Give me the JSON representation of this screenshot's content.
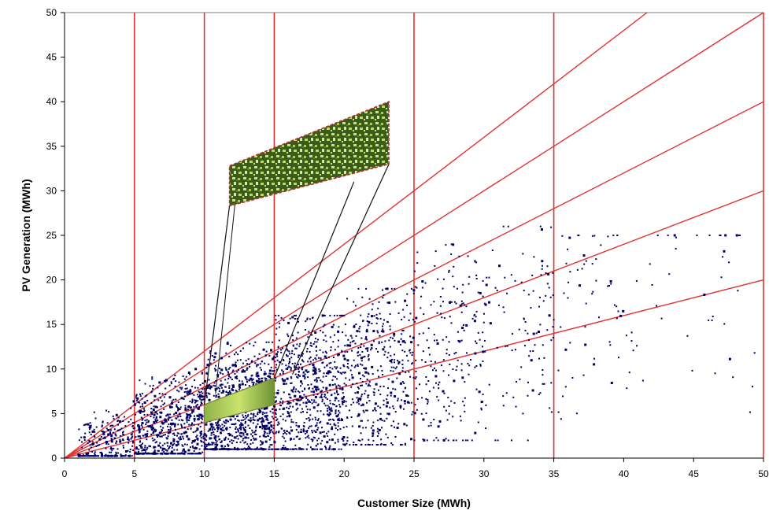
{
  "chart_data": {
    "type": "scatter",
    "title": "",
    "xlabel": "Customer Size (MWh)",
    "ylabel": "PV Generation (MWh)",
    "xlim": [
      0,
      50
    ],
    "ylim": [
      0,
      50
    ],
    "x_ticks": [
      0,
      5,
      10,
      15,
      20,
      25,
      30,
      35,
      40,
      45,
      50
    ],
    "y_ticks": [
      0,
      5,
      10,
      15,
      20,
      25,
      30,
      35,
      40,
      45,
      50
    ],
    "grid": false,
    "legend": "none",
    "vertical_reference_lines": [
      5,
      10,
      15,
      25,
      35,
      50
    ],
    "ratio_reference_lines": [
      0.4,
      0.6,
      0.8,
      1.0,
      1.2
    ],
    "highlight_region": {
      "x_range": [
        10,
        15
      ],
      "lower_ratio": 0.4,
      "upper_ratio": 0.6,
      "magnified": true
    },
    "scatter_density": [
      {
        "x": [
          1,
          5
        ],
        "y": [
          0.5,
          7
        ],
        "count": 250
      },
      {
        "x": [
          5,
          10
        ],
        "y": [
          1,
          10
        ],
        "count": 650
      },
      {
        "x": [
          10,
          15
        ],
        "y": [
          2,
          13
        ],
        "count": 900
      },
      {
        "x": [
          15,
          20
        ],
        "y": [
          2,
          16
        ],
        "count": 700
      },
      {
        "x": [
          20,
          25
        ],
        "y": [
          3,
          19
        ],
        "count": 420
      },
      {
        "x": [
          25,
          30
        ],
        "y": [
          4,
          24
        ],
        "count": 220
      },
      {
        "x": [
          30,
          35
        ],
        "y": [
          4,
          26
        ],
        "count": 110
      },
      {
        "x": [
          35,
          40
        ],
        "y": [
          5,
          25
        ],
        "count": 60
      },
      {
        "x": [
          40,
          50
        ],
        "y": [
          3,
          25
        ],
        "count": 45
      }
    ],
    "colors": {
      "points": "#000066",
      "reference_lines": "#e23232",
      "highlight_light": "#c7e67a",
      "highlight_dark": "#3c5a1e",
      "highlight_border": "#b03030"
    }
  }
}
